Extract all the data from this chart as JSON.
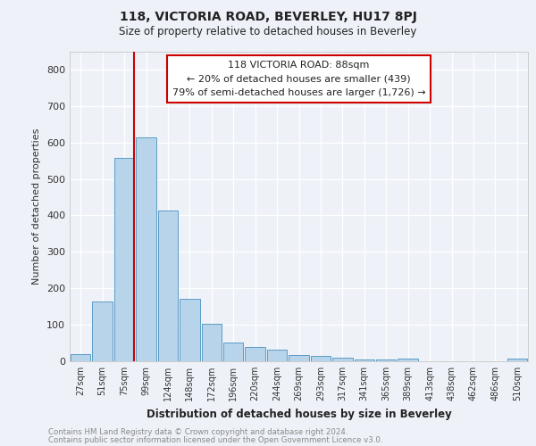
{
  "title1": "118, VICTORIA ROAD, BEVERLEY, HU17 8PJ",
  "title2": "Size of property relative to detached houses in Beverley",
  "xlabel": "Distribution of detached houses by size in Beverley",
  "ylabel": "Number of detached properties",
  "bar_labels": [
    "27sqm",
    "51sqm",
    "75sqm",
    "99sqm",
    "124sqm",
    "148sqm",
    "172sqm",
    "196sqm",
    "220sqm",
    "244sqm",
    "269sqm",
    "293sqm",
    "317sqm",
    "341sqm",
    "365sqm",
    "389sqm",
    "413sqm",
    "438sqm",
    "462sqm",
    "486sqm",
    "510sqm"
  ],
  "bar_values": [
    20,
    165,
    557,
    614,
    413,
    172,
    103,
    52,
    40,
    31,
    17,
    15,
    10,
    6,
    5,
    8,
    0,
    0,
    0,
    0,
    8
  ],
  "bar_color": "#b8d4ea",
  "bar_edge_color": "#5a9cc5",
  "annotation_text": "118 VICTORIA ROAD: 88sqm\n← 20% of detached houses are smaller (439)\n79% of semi-detached houses are larger (1,726) →",
  "annotation_box_color": "#ffffff",
  "annotation_box_edge_color": "#cc0000",
  "ylim": [
    0,
    850
  ],
  "yticks": [
    0,
    100,
    200,
    300,
    400,
    500,
    600,
    700,
    800
  ],
  "footer_line1": "Contains HM Land Registry data © Crown copyright and database right 2024.",
  "footer_line2": "Contains public sector information licensed under the Open Government Licence v3.0.",
  "bg_color": "#eef2f8",
  "plot_bg_color": "#eef2f8",
  "grid_color": "#ffffff",
  "text_color": "#222222",
  "footer_color": "#888888"
}
